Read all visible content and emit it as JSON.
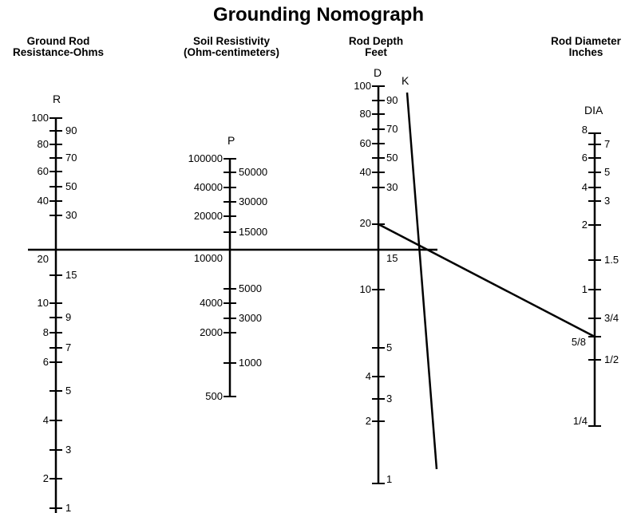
{
  "title": "Grounding Nomograph",
  "columns": {
    "r": {
      "header_1": "Ground Rod",
      "header_2": "Resistance-Ohms",
      "letter": "R"
    },
    "p": {
      "header_1": "Soil Resistivity",
      "header_2": "(Ohm-centimeters)",
      "letter": "P"
    },
    "d": {
      "header_1": "Rod Depth",
      "header_2": "Feet",
      "letter": "D"
    },
    "k": {
      "letter": "K"
    },
    "dia": {
      "header_1": "Rod Diameter",
      "header_2": "Inches",
      "letter": "DIA"
    }
  },
  "scales": {
    "r": {
      "left": [
        "100",
        "80",
        "60",
        "40",
        "20",
        "10",
        "8",
        "6",
        "4",
        "2"
      ],
      "right": [
        "90",
        "70",
        "50",
        "30",
        "15",
        "9",
        "7",
        "5",
        "3",
        "1"
      ]
    },
    "p": {
      "left": [
        "100000",
        "40000",
        "20000",
        "10000",
        "4000",
        "2000",
        "500"
      ],
      "right": [
        "50000",
        "30000",
        "15000",
        "5000",
        "3000",
        "1000"
      ]
    },
    "d": {
      "left": [
        "100",
        "80",
        "60",
        "40",
        "20",
        "10",
        "4",
        "2"
      ],
      "right": [
        "90",
        "70",
        "50",
        "30",
        "15",
        "5",
        "3",
        "1"
      ]
    },
    "dia": {
      "left": [
        "8",
        "6",
        "4",
        "2",
        "1",
        "5/8",
        "1/4"
      ],
      "right": [
        "7",
        "5",
        "3",
        "1.5",
        "3/4",
        "1/2"
      ]
    }
  }
}
